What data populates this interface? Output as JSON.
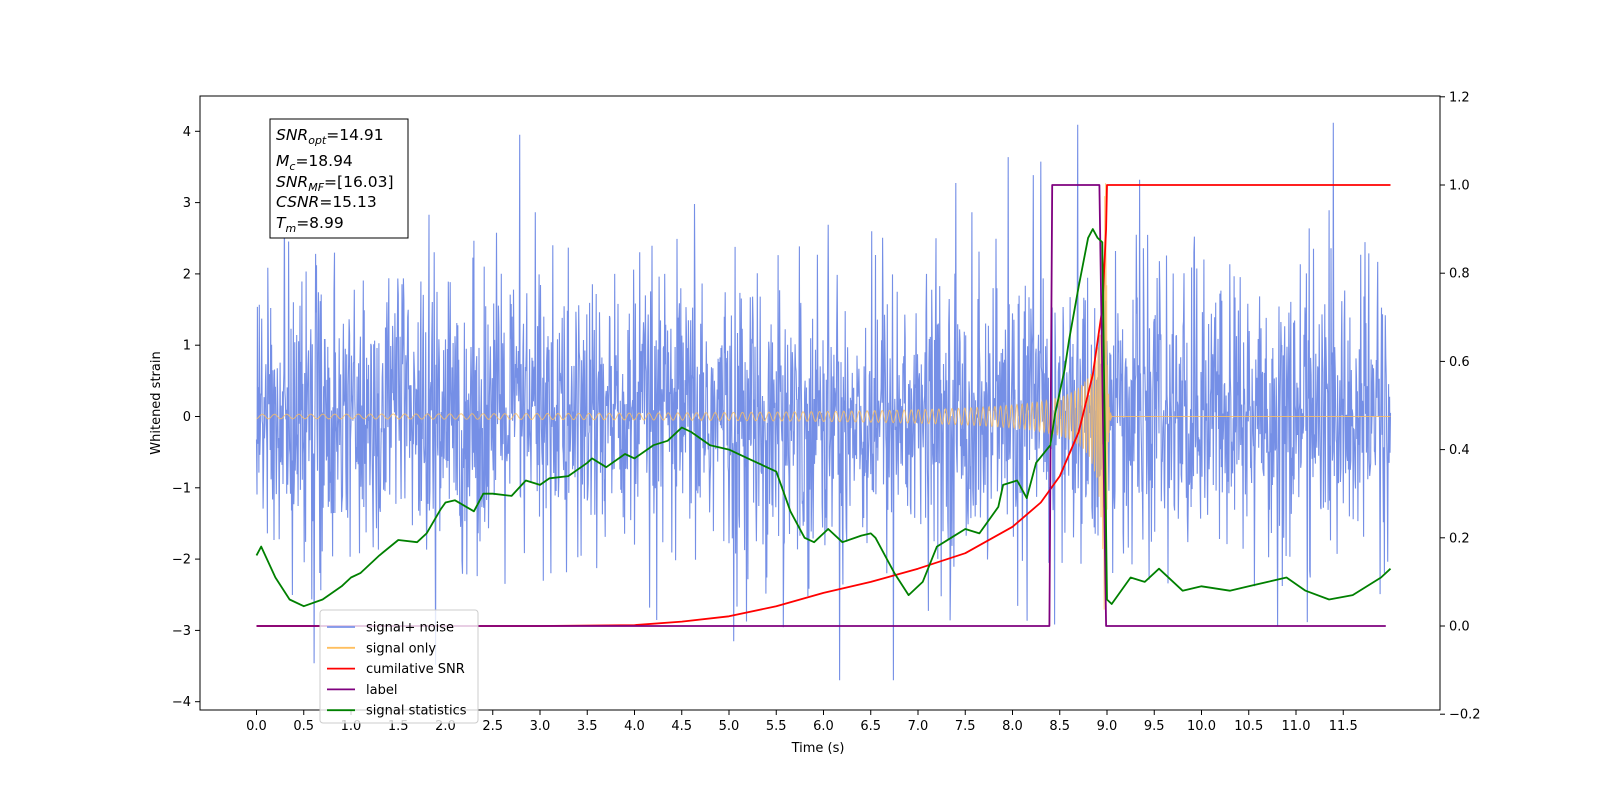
{
  "chart_data": {
    "type": "line",
    "xlabel": "Time (s)",
    "ylabel": "Whitened strain",
    "xlim": [
      -0.6,
      12.6
    ],
    "ylim": [
      -4.2,
      4.5
    ],
    "y2lim": [
      -0.2,
      1.2
    ],
    "x_ticks": [
      0.0,
      0.5,
      1.0,
      1.5,
      2.0,
      2.5,
      3.0,
      3.5,
      4.0,
      4.5,
      5.0,
      5.5,
      6.0,
      6.5,
      7.0,
      7.5,
      8.0,
      8.5,
      9.0,
      9.5,
      10.0,
      10.5,
      11.0,
      11.5
    ],
    "x_tick_labels": [
      "0.0",
      "0.5",
      "1.0",
      "1.5",
      "2.0",
      "2.5",
      "3.0",
      "3.5",
      "4.0",
      "4.5",
      "5.0",
      "5.5",
      "6.0",
      "6.5",
      "7.0",
      "7.5",
      "8.0",
      "8.5",
      "9.0",
      "9.5",
      "10.0",
      "10.5",
      "11.0",
      "11.5"
    ],
    "y_ticks": [
      -4,
      -3,
      -2,
      -1,
      0,
      1,
      2,
      3,
      4
    ],
    "y_tick_labels": [
      "−4",
      "−3",
      "−2",
      "−1",
      "0",
      "1",
      "2",
      "3",
      "4"
    ],
    "y2_ticks": [
      -0.2,
      0.0,
      0.2,
      0.4,
      0.6,
      0.8,
      1.0,
      1.2
    ],
    "y2_tick_labels": [
      "−0.2",
      "0.0",
      "0.2",
      "0.4",
      "0.6",
      "0.8",
      "1.0",
      "1.2"
    ],
    "grid": false,
    "legend_position": "lower-left",
    "stats_box": {
      "snr_opt": {
        "base": "SNR",
        "sub": "opt",
        "value": "=14.91"
      },
      "mc": {
        "base": "M",
        "sub": "c",
        "value": "=18.94"
      },
      "snr_mf": {
        "base": "SNR",
        "sub": "MF",
        "value": "=[16.03]"
      },
      "csnr": {
        "base": "CSNR",
        "sub": "",
        "value": "=15.13"
      },
      "tm": {
        "base": "T",
        "sub": "m",
        "value": "=8.99"
      }
    },
    "series": [
      {
        "name": "signal+ noise",
        "color": "#3a5fdb",
        "axis": "left",
        "description_values": {
          "t_start": 0.0,
          "t_end": 12.0,
          "noise_sigma": 1.0,
          "min_peak": -3.7,
          "max_peak": 4.12
        }
      },
      {
        "name": "signal only",
        "color": "#ffbf5f",
        "axis": "left",
        "chirp": {
          "t_start": 0.0,
          "t_merger": 8.99,
          "t_end": 12.0,
          "peak_amplitude": 3.3
        }
      },
      {
        "name": "cumilative SNR",
        "color": "#ff0000",
        "axis": "right",
        "x": [
          0.0,
          3.0,
          4.0,
          4.5,
          5.0,
          5.5,
          6.0,
          6.5,
          7.0,
          7.5,
          8.0,
          8.3,
          8.5,
          8.7,
          8.85,
          8.95,
          8.99,
          9.0,
          12.0
        ],
        "y": [
          0.0,
          0.0,
          0.002,
          0.01,
          0.022,
          0.045,
          0.075,
          0.1,
          0.13,
          0.165,
          0.225,
          0.28,
          0.34,
          0.44,
          0.57,
          0.72,
          0.9,
          1.0,
          1.0
        ]
      },
      {
        "name": "label",
        "color": "#7f007f",
        "axis": "right",
        "x": [
          0.0,
          8.39,
          8.42,
          8.92,
          8.99,
          11.95
        ],
        "y": [
          0.0,
          0.0,
          1.0,
          1.0,
          0.0,
          0.0
        ]
      },
      {
        "name": "signal statistics",
        "color": "#008000",
        "axis": "right",
        "x": [
          0.0,
          0.05,
          0.2,
          0.35,
          0.5,
          0.7,
          0.9,
          1.0,
          1.1,
          1.3,
          1.5,
          1.7,
          1.8,
          1.95,
          2.0,
          2.1,
          2.3,
          2.4,
          2.5,
          2.7,
          2.85,
          3.0,
          3.1,
          3.3,
          3.5,
          3.55,
          3.7,
          3.9,
          4.0,
          4.2,
          4.35,
          4.5,
          4.6,
          4.8,
          5.0,
          5.2,
          5.5,
          5.65,
          5.8,
          5.9,
          6.05,
          6.2,
          6.4,
          6.5,
          6.55,
          6.75,
          6.9,
          7.05,
          7.2,
          7.35,
          7.5,
          7.65,
          7.85,
          7.9,
          8.05,
          8.15,
          8.25,
          8.4,
          8.45,
          8.55,
          8.6,
          8.7,
          8.8,
          8.85,
          8.9,
          8.95,
          9.0,
          9.05,
          9.25,
          9.4,
          9.55,
          9.8,
          10.0,
          10.3,
          10.5,
          10.7,
          10.9,
          11.1,
          11.35,
          11.6,
          11.9,
          12.0
        ],
        "y": [
          0.16,
          0.18,
          0.11,
          0.06,
          0.045,
          0.06,
          0.09,
          0.11,
          0.12,
          0.16,
          0.195,
          0.19,
          0.21,
          0.265,
          0.28,
          0.285,
          0.26,
          0.3,
          0.3,
          0.295,
          0.33,
          0.32,
          0.335,
          0.34,
          0.37,
          0.38,
          0.36,
          0.39,
          0.38,
          0.41,
          0.42,
          0.45,
          0.44,
          0.41,
          0.4,
          0.38,
          0.35,
          0.26,
          0.2,
          0.19,
          0.22,
          0.19,
          0.205,
          0.21,
          0.2,
          0.12,
          0.07,
          0.1,
          0.18,
          0.2,
          0.22,
          0.21,
          0.27,
          0.32,
          0.33,
          0.29,
          0.37,
          0.41,
          0.48,
          0.58,
          0.65,
          0.77,
          0.88,
          0.9,
          0.88,
          0.87,
          0.06,
          0.05,
          0.11,
          0.1,
          0.13,
          0.08,
          0.09,
          0.08,
          0.09,
          0.1,
          0.11,
          0.08,
          0.06,
          0.07,
          0.11,
          0.13
        ]
      }
    ],
    "legend": [
      {
        "label": "signal+ noise",
        "color": "#7b93e8"
      },
      {
        "label": "signal only",
        "color": "#ffbf5f"
      },
      {
        "label": "cumilative SNR",
        "color": "#ff0000"
      },
      {
        "label": "label",
        "color": "#7f007f"
      },
      {
        "label": "signal statistics",
        "color": "#008000"
      }
    ]
  }
}
